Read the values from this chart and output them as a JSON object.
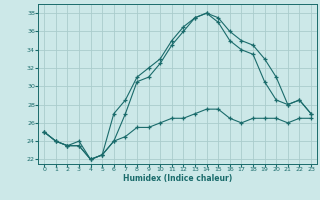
{
  "xlabel": "Humidex (Indice chaleur)",
  "xlim": [
    -0.5,
    23.5
  ],
  "ylim": [
    21.5,
    39.0
  ],
  "yticks": [
    22,
    24,
    26,
    28,
    30,
    32,
    34,
    36,
    38
  ],
  "xticks": [
    0,
    1,
    2,
    3,
    4,
    5,
    6,
    7,
    8,
    9,
    10,
    11,
    12,
    13,
    14,
    15,
    16,
    17,
    18,
    19,
    20,
    21,
    22,
    23
  ],
  "bg_color": "#cce8e8",
  "grid_color": "#aacccc",
  "line_color": "#1a6b6b",
  "line1_x": [
    0,
    1,
    2,
    3,
    4,
    5,
    6,
    7,
    8,
    9,
    10,
    11,
    12,
    13,
    14,
    15,
    16,
    17,
    18,
    19,
    20,
    21,
    22,
    23
  ],
  "line1_y": [
    25.0,
    24.0,
    23.5,
    23.5,
    22.0,
    22.5,
    27.0,
    28.5,
    31.0,
    32.0,
    33.0,
    35.0,
    36.5,
    37.5,
    38.0,
    37.5,
    36.0,
    35.0,
    34.5,
    33.0,
    31.0,
    28.0,
    28.5,
    27.0
  ],
  "line2_x": [
    0,
    1,
    2,
    3,
    4,
    5,
    6,
    7,
    8,
    9,
    10,
    11,
    12,
    13,
    14,
    15,
    16,
    17,
    18,
    19,
    20,
    21,
    22,
    23
  ],
  "line2_y": [
    25.0,
    24.0,
    23.5,
    24.0,
    22.0,
    22.5,
    24.0,
    27.0,
    30.5,
    31.0,
    32.5,
    34.5,
    36.0,
    37.5,
    38.0,
    37.0,
    35.0,
    34.0,
    33.5,
    30.5,
    28.5,
    28.0,
    28.5,
    27.0
  ],
  "line3_x": [
    0,
    1,
    2,
    3,
    4,
    5,
    6,
    7,
    8,
    9,
    10,
    11,
    12,
    13,
    14,
    15,
    16,
    17,
    18,
    19,
    20,
    21,
    22,
    23
  ],
  "line3_y": [
    25.0,
    24.0,
    23.5,
    23.5,
    22.0,
    22.5,
    24.0,
    24.5,
    25.5,
    25.5,
    26.0,
    26.5,
    26.5,
    27.0,
    27.5,
    27.5,
    26.5,
    26.0,
    26.5,
    26.5,
    26.5,
    26.0,
    26.5,
    26.5
  ]
}
